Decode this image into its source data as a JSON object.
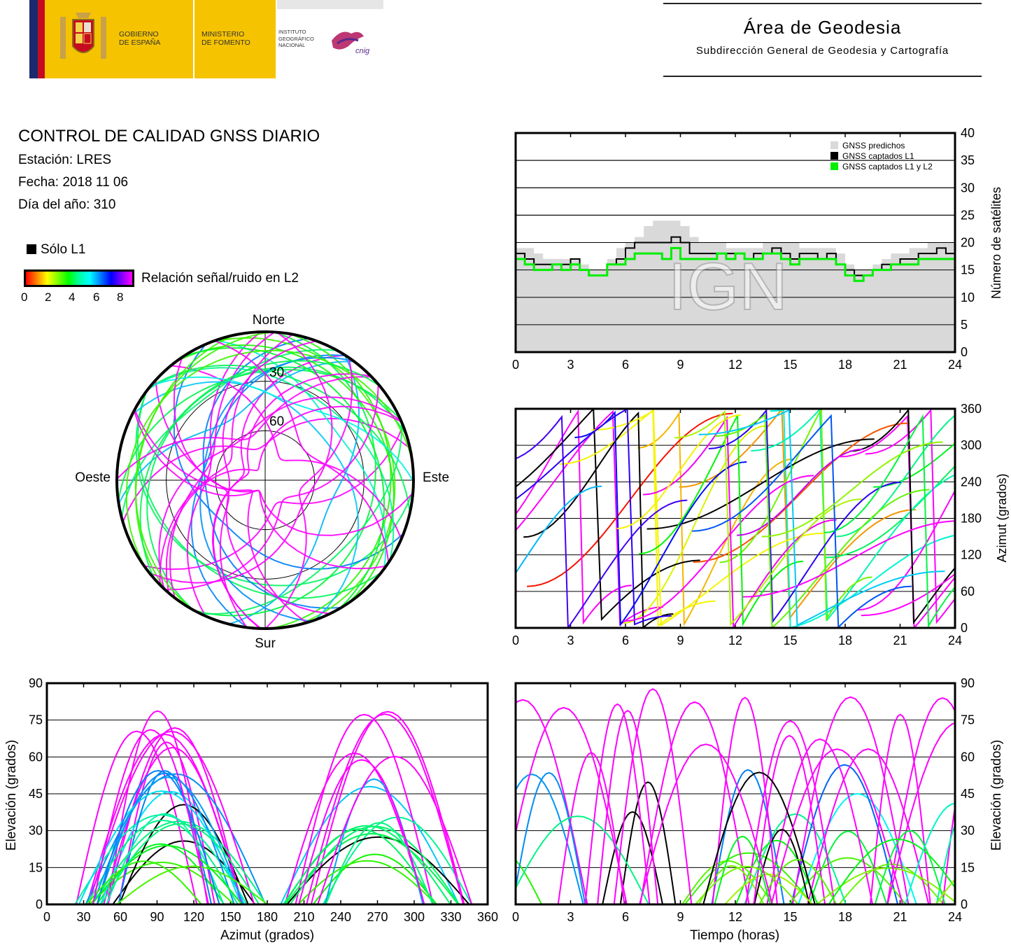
{
  "header": {
    "gov_text": [
      "GOBIERNO",
      "DE ESPAÑA"
    ],
    "ministry_text": [
      "MINISTERIO",
      "DE FOMENTO"
    ],
    "institute_text": [
      "INSTITUTO",
      "GEOGRÁFICO",
      "NACIONAL"
    ],
    "institute_logo_text": "cnig",
    "title": "Área de Geodesia",
    "subtitle": "Subdirección General de Geodesia y Cartografía"
  },
  "info": {
    "title": "CONTROL DE CALIDAD GNSS DIARIO",
    "station": "Estación: LRES",
    "date": "Fecha: 2018 11 06",
    "doy": "Día del año: 310"
  },
  "legend": {
    "l1_only": "Sólo L1",
    "snr_label": "Relación señal/ruido en L2",
    "snr_ticks": [
      "0",
      "2",
      "4",
      "6",
      "8"
    ]
  },
  "watermark": "IGN",
  "colors": {
    "predicted": "#d9d9d9",
    "l1": "#000000",
    "l1l2": "#00ee00"
  },
  "chart_data": [
    {
      "id": "satellites",
      "type": "area",
      "xlim": [
        0,
        24
      ],
      "ylim": [
        0,
        40
      ],
      "ylabel": "Número de satélites",
      "xticks": [
        "0",
        "3",
        "6",
        "9",
        "12",
        "15",
        "18",
        "21",
        "24"
      ],
      "yticks": [
        "0",
        "5",
        "10",
        "15",
        "20",
        "25",
        "30",
        "35",
        "40"
      ],
      "legend": [
        "GNSS predichos",
        "GNSS captados L1",
        "GNSS captados L1 y L2"
      ],
      "legend_position": "top-right",
      "x": [
        0,
        0.5,
        1,
        1.5,
        2,
        2.5,
        3,
        3.5,
        4,
        4.5,
        5,
        5.5,
        6,
        6.5,
        7,
        7.5,
        8,
        8.5,
        9,
        9.5,
        10,
        10.5,
        11,
        11.5,
        12,
        12.5,
        13,
        13.5,
        14,
        14.5,
        15,
        15.5,
        16,
        16.5,
        17,
        17.5,
        18,
        18.5,
        19,
        19.5,
        20,
        20.5,
        21,
        21.5,
        22,
        22.5,
        23,
        23.5,
        24
      ],
      "series": [
        {
          "name": "GNSS predichos",
          "values": [
            19,
            19,
            18,
            17,
            17,
            17,
            17,
            16,
            15,
            15,
            17,
            19,
            20,
            21,
            23,
            24,
            24,
            24,
            23,
            21,
            20,
            20,
            20,
            19,
            19,
            19,
            19,
            20,
            20,
            20,
            20,
            19,
            19,
            19,
            19,
            18,
            16,
            15,
            15,
            16,
            17,
            18,
            18,
            19,
            19,
            20,
            20,
            20,
            20
          ]
        },
        {
          "name": "GNSS captados L1",
          "values": [
            18,
            17,
            16,
            16,
            16,
            16,
            17,
            15,
            14,
            14,
            16,
            17,
            19,
            20,
            20,
            20,
            20,
            21,
            20,
            18,
            18,
            18,
            18,
            18,
            18,
            17,
            18,
            18,
            19,
            18,
            17,
            18,
            18,
            17,
            18,
            16,
            15,
            14,
            14,
            15,
            16,
            16,
            17,
            17,
            18,
            18,
            19,
            18,
            19
          ]
        },
        {
          "name": "GNSS captados L1 y L2",
          "values": [
            17,
            16,
            15,
            15,
            16,
            15,
            16,
            15,
            14,
            14,
            16,
            16,
            17,
            18,
            18,
            18,
            17,
            19,
            17,
            17,
            17,
            17,
            18,
            17,
            18,
            17,
            17,
            18,
            18,
            17,
            16,
            17,
            17,
            17,
            17,
            16,
            14,
            13,
            14,
            15,
            15,
            16,
            16,
            16,
            17,
            17,
            17,
            17,
            17
          ]
        }
      ]
    },
    {
      "id": "skyplot",
      "type": "scatter",
      "projection": "polar",
      "directions": [
        "Norte",
        "Sur",
        "Este",
        "Oeste"
      ],
      "ring_labels": [
        "30",
        "60"
      ],
      "rings_elevation": [
        0,
        30,
        60
      ],
      "color_metric": "Relación señal/ruido en L2",
      "color_range": [
        0,
        9
      ]
    },
    {
      "id": "azimuth_time",
      "type": "scatter",
      "xlim": [
        0,
        24
      ],
      "ylim": [
        0,
        360
      ],
      "ylabel": "Azimut (grados)",
      "xticks": [
        "0",
        "3",
        "6",
        "9",
        "12",
        "15",
        "18",
        "21",
        "24"
      ],
      "yticks": [
        "0",
        "60",
        "120",
        "180",
        "240",
        "300",
        "360"
      ]
    },
    {
      "id": "elevation_azimuth",
      "type": "scatter",
      "xlim": [
        0,
        360
      ],
      "ylim": [
        0,
        90
      ],
      "xlabel": "Azimut (grados)",
      "ylabel": "Elevación (grados)",
      "xticks": [
        "0",
        "30",
        "60",
        "90",
        "120",
        "150",
        "180",
        "210",
        "240",
        "270",
        "300",
        "330",
        "360"
      ],
      "yticks": [
        "0",
        "15",
        "30",
        "45",
        "60",
        "75",
        "90"
      ]
    },
    {
      "id": "elevation_time",
      "type": "scatter",
      "xlim": [
        0,
        24
      ],
      "ylim": [
        0,
        90
      ],
      "xlabel": "Tiempo (horas)",
      "ylabel": "Elevación (grados)",
      "xticks": [
        "0",
        "3",
        "6",
        "9",
        "12",
        "15",
        "18",
        "21",
        "24"
      ],
      "yticks": [
        "0",
        "15",
        "30",
        "45",
        "60",
        "75",
        "90"
      ]
    }
  ]
}
